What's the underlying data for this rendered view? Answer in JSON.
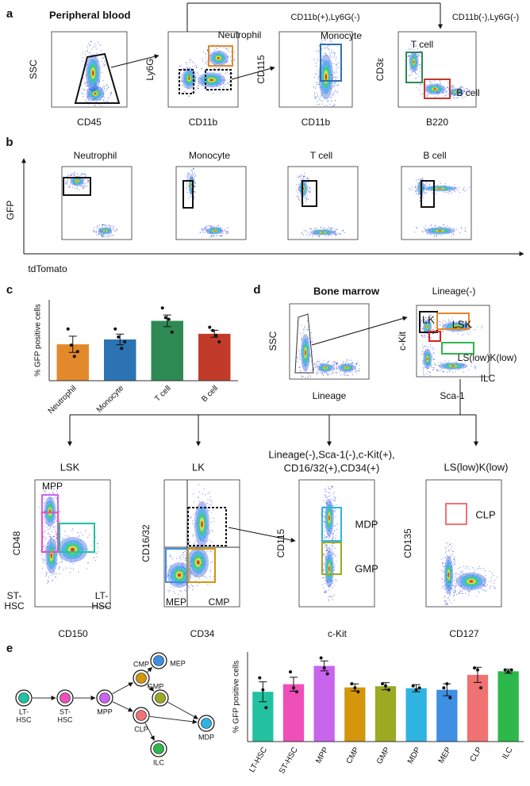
{
  "panel_a": {
    "letter": "a",
    "title": "Peripheral blood",
    "gate_headers": [
      "CD11b(+),Ly6G(-)",
      "CD11b(-),Ly6G(-)"
    ],
    "plots": [
      {
        "x_label": "CD45",
        "y_label": "SSC"
      },
      {
        "x_label": "CD11b",
        "y_label": "Ly6G",
        "gates": [
          "Neutrophil"
        ]
      },
      {
        "x_label": "CD11b",
        "y_label": "CD115",
        "gates": [
          "Monocyte"
        ]
      },
      {
        "x_label": "B220",
        "y_label": "CD3ε",
        "gates": [
          "T cell",
          "B cell"
        ]
      }
    ]
  },
  "panel_b": {
    "letter": "b",
    "titles": [
      "Neutrophil",
      "Monocyte",
      "T cell",
      "B cell"
    ],
    "y_label": "GFP",
    "x_label": "tdTomato"
  },
  "panel_c": {
    "letter": "c"
  },
  "panel_d": {
    "letter": "d",
    "title": "Bone marrow",
    "header": "Lineage(-)",
    "plots": [
      {
        "x_label": "Lineage",
        "y_label": "SSC"
      },
      {
        "x_label": "Sca-1",
        "y_label": "c-Kit",
        "gates": [
          "LK",
          "LSK",
          "LS(low)K(low)",
          "ILC"
        ]
      }
    ],
    "sub_headers": [
      [
        "LSK"
      ],
      [
        "LK"
      ],
      [
        "Lineage(-),Sca-1(-),c-Kit(+),",
        "CD16/32(+),CD34(+)"
      ],
      [
        "LS(low)K(low)"
      ]
    ],
    "sub_plots": [
      {
        "x_label": "CD150",
        "y_label": "CD48",
        "gates": [
          [
            "MPP"
          ],
          [
            "ST-",
            "HSC"
          ],
          [
            "LT-",
            "HSC"
          ]
        ]
      },
      {
        "x_label": "CD34",
        "y_label": "CD16/32",
        "gates": [
          [
            "MEP"
          ],
          [
            "CMP"
          ]
        ]
      },
      {
        "x_label": "c-Kit",
        "y_label": "CD115",
        "gates": [
          [
            "MDP"
          ],
          [
            "GMP"
          ]
        ]
      },
      {
        "x_label": "CD127",
        "y_label": "CD135",
        "gates": [
          [
            "CLP"
          ]
        ]
      }
    ]
  },
  "panel_e": {
    "letter": "e",
    "nodes": [
      {
        "lines": [
          "LT-",
          "HSC"
        ]
      },
      {
        "lines": [
          "ST-",
          "HSC"
        ]
      },
      {
        "lines": [
          "MPP"
        ]
      },
      {
        "lines": [
          "CMP"
        ]
      },
      {
        "lines": [
          "MEP"
        ]
      },
      {
        "lines": [
          "GMP"
        ]
      },
      {
        "lines": [
          "MDP"
        ]
      },
      {
        "lines": [
          "CLP"
        ]
      },
      {
        "lines": [
          "ILC"
        ]
      }
    ]
  },
  "chart_data": [
    {
      "type": "bar",
      "y_label": "% GFP positive cells",
      "categories": [
        "Neutrophil",
        "Monocyte",
        "T cell",
        "B cell"
      ],
      "colors": [
        "#e3892b",
        "#2b73b3",
        "#2e8a53",
        "#c23b2a"
      ],
      "values": [
        22.5,
        25.5,
        37,
        29
      ],
      "errors": [
        5,
        3.3,
        3.6,
        2.2
      ],
      "points": [
        [
          32,
          22,
          15,
          18
        ],
        [
          32,
          27,
          20,
          24
        ],
        [
          45,
          39,
          38,
          30
        ],
        [
          33,
          31,
          28,
          24
        ]
      ],
      "ylim": [
        0,
        50
      ]
    },
    {
      "type": "bar",
      "y_label": "% GFP positive cells",
      "categories": [
        "LT-HSC",
        "ST-HSC",
        "MPP",
        "CMP",
        "GMP",
        "MDP",
        "MEP",
        "CLP",
        "ILC"
      ],
      "colors": [
        "#22c2a0",
        "#ee4fb8",
        "#c964ec",
        "#d3960c",
        "#9caa22",
        "#2fb4e2",
        "#3f8fe3",
        "#f07272",
        "#2cb84b"
      ],
      "values": [
        25,
        28.8,
        38,
        27.2,
        27.8,
        26.8,
        26,
        33.5,
        35.3
      ],
      "errors": [
        5,
        3.5,
        2.5,
        1.8,
        1.8,
        1.8,
        3,
        3.8,
        1
      ],
      "points": [
        [
          32,
          26,
          17
        ],
        [
          35,
          27,
          25
        ],
        [
          42,
          37,
          34
        ],
        [
          29,
          27,
          25
        ],
        [
          29,
          28,
          26
        ],
        [
          28,
          26,
          27
        ],
        [
          27,
          29,
          22
        ],
        [
          37,
          36,
          27
        ],
        [
          36,
          35,
          36
        ]
      ],
      "ylim": [
        0,
        45
      ]
    }
  ]
}
